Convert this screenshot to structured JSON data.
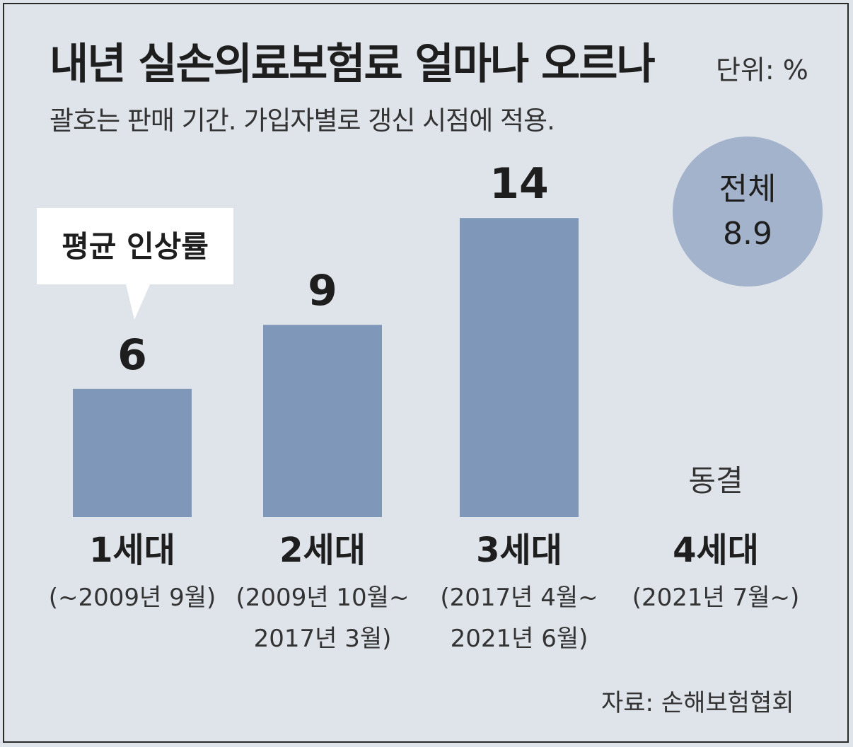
{
  "header": {
    "title": "내년 실손의료보험료 얼마나 오르나",
    "unit": "단위: %",
    "subtitle": "괄호는 판매 기간. 가입자별로 갱신 시점에 적용."
  },
  "callout": "평균 인상률",
  "total": {
    "label": "전체",
    "value": "8.9"
  },
  "source": "자료: 손해보험협회",
  "chart_data": {
    "type": "bar",
    "title": "내년 실손의료보험료 얼마나 오르나",
    "ylabel": "",
    "xlabel": "",
    "unit": "%",
    "categories": [
      "1세대",
      "2세대",
      "3세대",
      "4세대"
    ],
    "periods": [
      [
        "(~2009년 9월)"
      ],
      [
        "(2009년 10월~",
        "2017년 3월)"
      ],
      [
        "(2017년 4월~",
        "2021년 6월)"
      ],
      [
        "(2021년 7월~)"
      ]
    ],
    "values": [
      6,
      9,
      14,
      null
    ],
    "value_labels": [
      "6",
      "9",
      "14",
      "동결"
    ],
    "overall_average": 8.9,
    "colors": {
      "bar": "#7f97b8",
      "background": "#dfe3ea",
      "total_circle": "#a2b3cb"
    }
  }
}
